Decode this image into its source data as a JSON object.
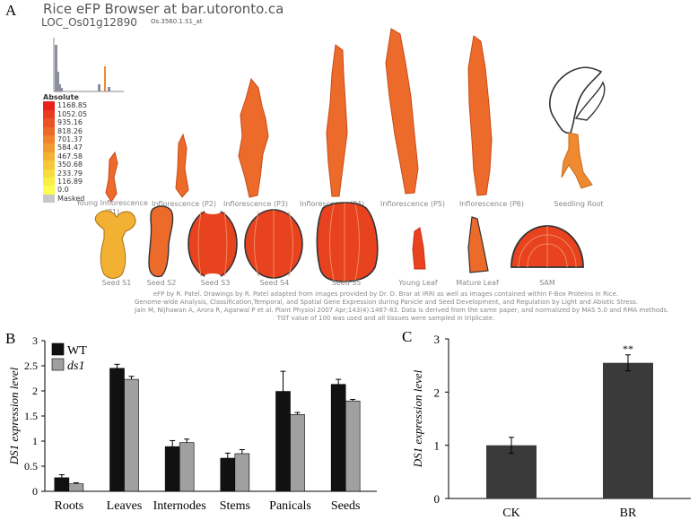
{
  "panels": {
    "a": "A",
    "b": "B",
    "c": "C"
  },
  "efp": {
    "title": "Rice eFP Browser at bar.utoronto.ca",
    "locus": "LOC_Os01g12890",
    "probe": "Os.3560.1.S1_at",
    "legend_title": "Absolute",
    "legend": [
      {
        "value": "1168.85",
        "color": "#e8231c"
      },
      {
        "value": "1052.05",
        "color": "#ea3a1f"
      },
      {
        "value": "935.16",
        "color": "#ec5224"
      },
      {
        "value": "818.26",
        "color": "#ee6a28"
      },
      {
        "value": "701.37",
        "color": "#f0822c"
      },
      {
        "value": "584.47",
        "color": "#f29a30"
      },
      {
        "value": "467.58",
        "color": "#f4b234"
      },
      {
        "value": "350.68",
        "color": "#f6c838"
      },
      {
        "value": "233.79",
        "color": "#f8dc3c"
      },
      {
        "value": "116.89",
        "color": "#faee44"
      },
      {
        "value": "0.0",
        "color": "#fcfc52"
      },
      {
        "value": "Masked",
        "color": "#c8c8c8"
      }
    ],
    "tissues_row1": [
      "Young Inflorescence (P1)",
      "Inflorescence (P2)",
      "Inflorescence (P3)",
      "Inflorescence (P4)",
      "Inflorescence (P5)",
      "Inflorescence (P6)",
      "Seedling Root"
    ],
    "tissues_row2": [
      "Seed S1",
      "Seed S2",
      "Seed S3",
      "Seed S4",
      "Seed S5",
      "Young Leaf",
      "Mature Leaf",
      "SAM"
    ],
    "caption": [
      "eFP by R. Patel. Drawings by R. Patel adapted from images provided by Dr. D. Brar at IRRI as well as images contained within F-Box Proteins in Rice.",
      "Genome-wide Analysis, Classification,Temporal, and Spatial Gene Expression during Panicle and Seed Development, and Regulation by Light and Abiotic Stress.",
      "Jain M, Nijhawan A, Arora R, Agarwal P et al. Plant Physiol 2007 Apr;143(4):1467-83. Data is derived from the same paper, and normalized by MAS 5.0 and RMA methods.",
      "TGT value of 100 was used and all tissues were sampled in triplicate."
    ],
    "colors": {
      "high": "#e8421f",
      "mid": "#ec6a2a",
      "orange": "#f08a30",
      "light": "#f3b134"
    }
  },
  "chart_data": [
    {
      "type": "bar",
      "panel": "B",
      "categories": [
        "Roots",
        "Leaves",
        "Internodes",
        "Stems",
        "Panicals",
        "Seeds"
      ],
      "series": [
        {
          "name": "WT",
          "values": [
            0.27,
            2.45,
            0.89,
            0.66,
            1.99,
            2.13
          ],
          "errors": [
            0.06,
            0.08,
            0.12,
            0.1,
            0.4,
            0.1
          ],
          "color": "#111111"
        },
        {
          "name": "ds1",
          "values": [
            0.15,
            2.23,
            0.97,
            0.75,
            1.53,
            1.8
          ],
          "errors": [
            0.02,
            0.06,
            0.07,
            0.08,
            0.04,
            0.03
          ],
          "color": "#a0a0a0"
        }
      ],
      "ylabel": "DS1 expression level",
      "ylim": [
        0,
        3
      ],
      "yticks": [
        "0",
        "0.5",
        "1",
        "1.5",
        "2",
        "2.5",
        "3"
      ],
      "legend_position": "top-left"
    },
    {
      "type": "bar",
      "panel": "C",
      "categories": [
        "CK",
        "BR"
      ],
      "values": [
        1.0,
        2.55
      ],
      "errors": [
        0.15,
        0.15
      ],
      "color": "#3a3a3a",
      "annotations": [
        "",
        "**"
      ],
      "ylabel": "DS1 expression level",
      "ylim": [
        0,
        3
      ],
      "yticks": [
        "0",
        "1",
        "2",
        "3"
      ]
    }
  ]
}
